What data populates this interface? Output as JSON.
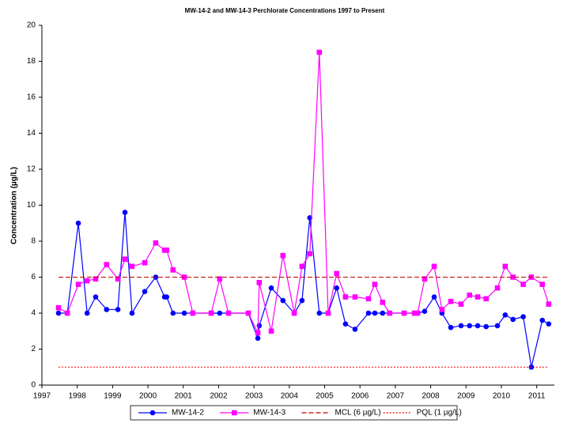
{
  "chart_data": {
    "type": "line",
    "title": "MW-14-2 and MW-14-3 Perchlorate Concentrations 1997 to Present",
    "ylabel": "Concentration (µg/L)",
    "xlim": [
      1997,
      2011.5
    ],
    "xticks": [
      1997,
      1998,
      1999,
      2000,
      2001,
      2002,
      2003,
      2004,
      2005,
      2006,
      2007,
      2008,
      2009,
      2010,
      2011
    ],
    "ylim": [
      0,
      20
    ],
    "yticks": [
      0,
      2,
      4,
      6,
      8,
      10,
      12,
      14,
      16,
      18,
      20
    ],
    "grid": false,
    "legend": "bottom",
    "series": [
      {
        "name": "MW-14-2",
        "color": "#0000ff",
        "marker": "circle",
        "dash": "solid",
        "x": [
          1997.47,
          1997.72,
          1998.03,
          1998.28,
          1998.52,
          1998.83,
          1999.15,
          1999.35,
          1999.55,
          1999.91,
          2000.22,
          2000.47,
          2000.53,
          2000.71,
          2001.03,
          2001.27,
          2001.79,
          2002.03,
          2002.28,
          2002.84,
          2003.11,
          2003.15,
          2003.49,
          2003.82,
          2004.14,
          2004.36,
          2004.58,
          2004.85,
          2005.1,
          2005.34,
          2005.59,
          2005.86,
          2006.24,
          2006.42,
          2006.64,
          2006.84,
          2007.25,
          2007.54,
          2007.63,
          2007.83,
          2008.1,
          2008.32,
          2008.57,
          2008.86,
          2009.1,
          2009.33,
          2009.57,
          2009.89,
          2010.11,
          2010.33,
          2010.62,
          2010.85,
          2011.16,
          2011.34
        ],
        "values": [
          4.0,
          4.0,
          9.0,
          4.0,
          4.9,
          4.2,
          4.2,
          9.6,
          4.0,
          5.2,
          6.0,
          4.9,
          4.9,
          4.0,
          4.0,
          4.0,
          4.0,
          4.0,
          4.0,
          4.0,
          2.6,
          3.3,
          5.4,
          4.7,
          4.0,
          4.7,
          9.3,
          4.0,
          4.0,
          5.4,
          3.4,
          3.1,
          4.0,
          4.0,
          4.0,
          4.0,
          4.0,
          4.0,
          4.0,
          4.1,
          4.9,
          4.0,
          3.2,
          3.3,
          3.3,
          3.3,
          3.25,
          3.3,
          3.9,
          3.65,
          3.8,
          1.0,
          3.6,
          3.4
        ]
      },
      {
        "name": "MW-14-3",
        "color": "#ff00ff",
        "marker": "square",
        "dash": "solid",
        "x": [
          1997.47,
          1997.72,
          1998.03,
          1998.28,
          1998.52,
          1998.83,
          1999.15,
          1999.35,
          1999.55,
          1999.91,
          2000.22,
          2000.47,
          2000.53,
          2000.71,
          2001.03,
          2001.27,
          2001.79,
          2002.03,
          2002.28,
          2002.84,
          2003.11,
          2003.15,
          2003.49,
          2003.82,
          2004.14,
          2004.36,
          2004.58,
          2004.85,
          2005.1,
          2005.34,
          2005.59,
          2005.86,
          2006.24,
          2006.42,
          2006.64,
          2006.84,
          2007.25,
          2007.54,
          2007.63,
          2007.83,
          2008.1,
          2008.32,
          2008.57,
          2008.86,
          2009.1,
          2009.33,
          2009.57,
          2009.89,
          2010.11,
          2010.33,
          2010.62,
          2010.85,
          2011.16,
          2011.34
        ],
        "values": [
          4.3,
          4.0,
          5.6,
          5.8,
          5.9,
          6.7,
          5.9,
          7.0,
          6.6,
          6.8,
          7.9,
          7.5,
          7.5,
          6.4,
          6.0,
          4.0,
          4.0,
          5.9,
          4.0,
          4.0,
          2.9,
          5.7,
          3.0,
          7.2,
          4.0,
          6.6,
          7.3,
          18.5,
          4.0,
          6.2,
          4.9,
          4.9,
          4.8,
          5.6,
          4.6,
          4.0,
          4.0,
          4.0,
          4.0,
          5.9,
          6.6,
          4.2,
          4.65,
          4.5,
          5.0,
          4.9,
          4.8,
          5.4,
          6.6,
          6.0,
          5.6,
          6.0,
          5.6,
          4.5
        ]
      },
      {
        "name": "MCL (6 µg/L)",
        "color": "#c00000",
        "marker": "none",
        "dash": "dashed",
        "x": [
          1997.47,
          2011.34
        ],
        "values": [
          6,
          6
        ]
      },
      {
        "name": "PQL (1 µg/L)",
        "color": "#ff0000",
        "marker": "none",
        "dash": "dotted",
        "x": [
          1997.47,
          2011.34
        ],
        "values": [
          1,
          1
        ]
      }
    ]
  }
}
